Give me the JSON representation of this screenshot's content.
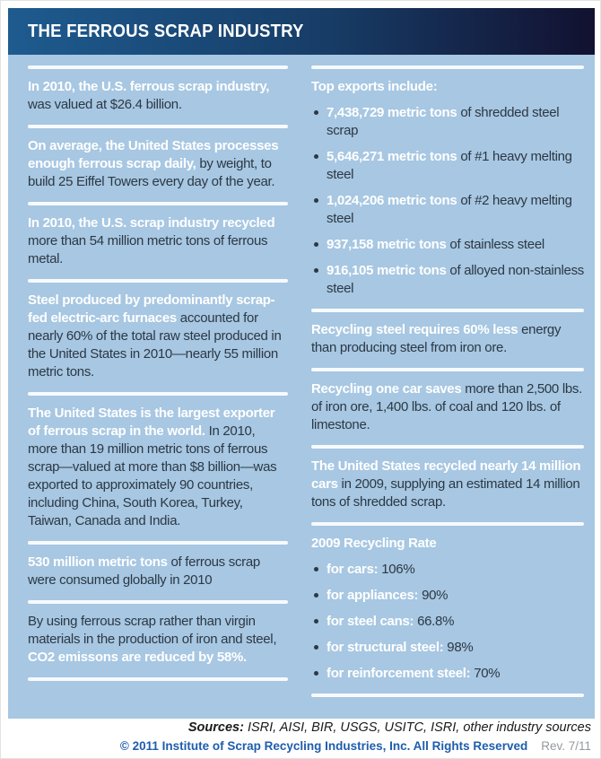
{
  "header": {
    "title": "THE FERROUS SCRAP INDUSTRY"
  },
  "colors": {
    "header_gradient_start": "#1e5b8f",
    "header_gradient_mid": "#173c66",
    "header_gradient_end": "#121130",
    "panel_bg": "#a7c7e2",
    "highlight_text": "#ffffff",
    "body_text": "#2c3844",
    "rule": "#fbfdff",
    "footer_sources_text": "#1a1a1a",
    "footer_copyright": "#1e5dad",
    "footer_rev": "#95999e"
  },
  "panel": {
    "left_items": [
      {
        "segments": [
          {
            "t": "In 2010, the U.S. ferrous scrap industry, ",
            "em": true
          },
          {
            "t": "was valued at $26.4 billion.",
            "em": false
          }
        ]
      },
      {
        "segments": [
          {
            "t": "On average, the United States processes enough ferrous scrap daily, ",
            "em": true
          },
          {
            "t": "by weight, to build 25 Eiffel Towers every day of the year.",
            "em": false
          }
        ]
      },
      {
        "segments": [
          {
            "t": "In 2010, the U.S. scrap industry recycled ",
            "em": true
          },
          {
            "t": "more than 54 million metric tons of ferrous metal.",
            "em": false
          }
        ]
      },
      {
        "segments": [
          {
            "t": "Steel produced by predominantly scrap-fed electric-arc furnaces ",
            "em": true
          },
          {
            "t": "accounted for nearly 60% of the total raw steel produced in the United States in 2010—nearly 55 million metric tons.",
            "em": false
          }
        ]
      },
      {
        "segments": [
          {
            "t": "The United States is the largest exporter of ferrous scrap in the world. ",
            "em": true
          },
          {
            "t": "In 2010, more than 19 million metric tons of ferrous scrap—valued at more than $8 billion—was exported to approximately 90 countries, including China, South Korea, Turkey, Taiwan, Canada and India.",
            "em": false
          }
        ]
      },
      {
        "segments": [
          {
            "t": "530 million metric tons ",
            "em": true
          },
          {
            "t": "of ferrous scrap were consumed globally in 2010",
            "em": false
          }
        ]
      },
      {
        "segments": [
          {
            "t": "By using ferrous scrap rather than virgin materials in the production of iron and steel, ",
            "em": false
          },
          {
            "t": "CO2 emissons are reduced by 58%.",
            "em": true
          }
        ]
      }
    ],
    "right_items": [
      {
        "heading": "Top exports include:",
        "bullets": [
          [
            {
              "t": "7,438,729 metric tons ",
              "em": true
            },
            {
              "t": "of shredded steel scrap",
              "em": false
            }
          ],
          [
            {
              "t": "5,646,271 metric tons ",
              "em": true
            },
            {
              "t": "of #1 heavy melting steel",
              "em": false
            }
          ],
          [
            {
              "t": "1,024,206 metric tons ",
              "em": true
            },
            {
              "t": "of #2 heavy melting steel",
              "em": false
            }
          ],
          [
            {
              "t": "937,158 metric tons ",
              "em": true
            },
            {
              "t": "of stainless steel",
              "em": false
            }
          ],
          [
            {
              "t": "916,105 metric tons ",
              "em": true
            },
            {
              "t": "of alloyed non-stainless steel",
              "em": false
            }
          ]
        ]
      },
      {
        "segments": [
          {
            "t": "Recycling steel requires 60% less ",
            "em": true
          },
          {
            "t": "energy than producing steel from iron ore.",
            "em": false
          }
        ]
      },
      {
        "segments": [
          {
            "t": "Recycling one car saves ",
            "em": true
          },
          {
            "t": "more than 2,500 lbs. of iron ore, 1,400 lbs. of coal and 120 lbs. of limestone.",
            "em": false
          }
        ]
      },
      {
        "segments": [
          {
            "t": "The United States recycled nearly 14 million cars ",
            "em": true
          },
          {
            "t": "in 2009, supplying an estimated 14 million tons of shredded scrap.",
            "em": false
          }
        ]
      },
      {
        "heading": "2009 Recycling Rate",
        "bullets": [
          [
            {
              "t": "for cars: ",
              "em": true
            },
            {
              "t": "106%",
              "em": false
            }
          ],
          [
            {
              "t": "for appliances: ",
              "em": true
            },
            {
              "t": "90%",
              "em": false
            }
          ],
          [
            {
              "t": "for steel cans: ",
              "em": true
            },
            {
              "t": "66.8%",
              "em": false
            }
          ],
          [
            {
              "t": "for structural steel: ",
              "em": true
            },
            {
              "t": "98%",
              "em": false
            }
          ],
          [
            {
              "t": "for reinforcement steel: ",
              "em": true
            },
            {
              "t": "70%",
              "em": false
            }
          ]
        ]
      }
    ]
  },
  "footer": {
    "sources_label": "Sources:",
    "sources_text": " ISRI, AISI, BIR, USGS, USITC, ISRI, other industry sources",
    "copyright": "© 2011 Institute of Scrap Recycling Industries, Inc. All Rights Reserved",
    "rev": "Rev. 7/11"
  }
}
